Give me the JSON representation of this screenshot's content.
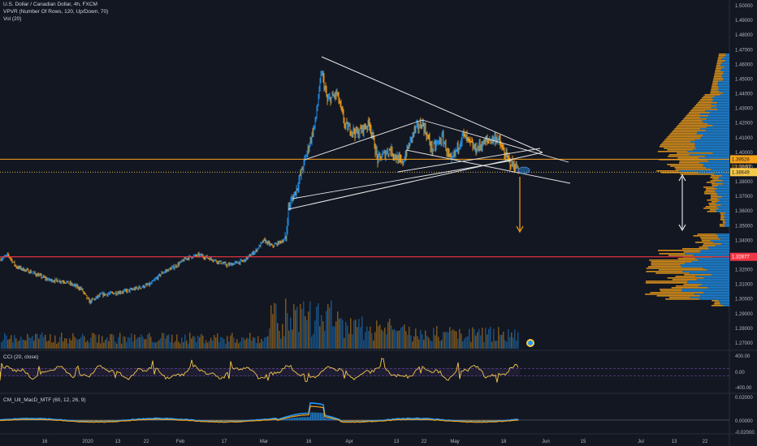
{
  "header": {
    "symbol_line": "U.S. Dollar / Canadian Dollar, 4h, FXCM",
    "vpvr_line": "VPVR (Number Of Rows, 120, Up/Down, 70)",
    "vol_line": "Vol (20)",
    "cci_line": "CCI (20, close)",
    "macd_line": "CM_Ult_MacD_MTF (60, 12, 26, 9)"
  },
  "price_axis": {
    "labels": [
      "1.50000",
      "1.49000",
      "1.48000",
      "1.47000",
      "1.46000",
      "1.45000",
      "1.44000",
      "1.43000",
      "1.42000",
      "1.41000",
      "1.40000",
      "1.39000",
      "1.38000",
      "1.37000",
      "1.36000",
      "1.35000",
      "1.34000",
      "1.33000",
      "1.32000",
      "1.31000",
      "1.30000",
      "1.29000",
      "1.28000",
      "1.27000"
    ]
  },
  "price_tags": {
    "resistance": "1.39528",
    "countdown": "03:02:57",
    "current": "1.38649",
    "support": "1.32877"
  },
  "cci_axis": {
    "labels": [
      "400.00",
      "0.00",
      "-400.00"
    ]
  },
  "macd_axis": {
    "labels": [
      "0.02000",
      "0.00000",
      "-0.02000"
    ]
  },
  "time_axis": {
    "labels": [
      "16",
      "2020",
      "13",
      "22",
      "Feb",
      "17",
      "Mar",
      "16",
      "Apr",
      "13",
      "22",
      "May",
      "18",
      "Jun",
      "15",
      "Jul",
      "13",
      "22"
    ]
  },
  "colors": {
    "background": "#131722",
    "bull": "#2196f3",
    "bear": "#f7a21b",
    "support_line": "#f23645",
    "resistance_line": "#f7a21b",
    "cci_line": "#f7c948",
    "cci_band": "#7e57c2",
    "macd_up": "#2196f3",
    "macd_down": "#f7a21b"
  },
  "chart_data": {
    "type": "line",
    "title": "U.S. Dollar / Canadian Dollar, 4h, FXCM",
    "x": [
      "16",
      "2020",
      "13",
      "22",
      "Feb",
      "17",
      "Mar",
      "16",
      "Apr",
      "13",
      "22",
      "May",
      "18"
    ],
    "series": [
      {
        "name": "U.S. Dollar / Canadian Dollar",
        "values": [
          1.33,
          1.305,
          1.312,
          1.315,
          1.326,
          1.328,
          1.342,
          1.39,
          1.415,
          1.405,
          1.405,
          1.401,
          1.387
        ]
      }
    ],
    "ylim": [
      1.265,
      1.505
    ],
    "grid": false,
    "legend": "none",
    "annotations": [
      "Symmetrical triangle",
      "Horizontal support 1.32877",
      "Horizontal resistance 1.39528",
      "Downward target arrow"
    ]
  }
}
